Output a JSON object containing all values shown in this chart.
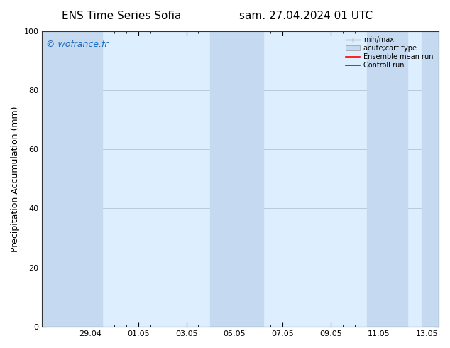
{
  "title_left": "ENS Time Series Sofia",
  "title_right": "sam. 27.04.2024 01 UTC",
  "ylabel": "Precipitation Accumulation (mm)",
  "watermark": "© wofrance.fr",
  "watermark_color": "#1a6abf",
  "ylim": [
    0,
    100
  ],
  "yticks": [
    0,
    20,
    40,
    60,
    80,
    100
  ],
  "xtick_labels": [
    "29.04",
    "01.05",
    "03.05",
    "05.05",
    "07.05",
    "09.05",
    "11.05",
    "13.05"
  ],
  "bg_color": "#ffffff",
  "plot_bg_color": "#ddeeff",
  "shaded_band_color": "#c5daf0",
  "legend_entries": [
    {
      "label": "min/max",
      "color": "#aaaaaa",
      "type": "errorbar"
    },
    {
      "label": "acute;cart type",
      "color": "#c5daf0",
      "type": "fill"
    },
    {
      "label": "Ensemble mean run",
      "color": "#ff0000",
      "type": "line"
    },
    {
      "label": "Controll run",
      "color": "#008800",
      "type": "line"
    }
  ],
  "xmin": 0.0,
  "xmax": 16.5,
  "grid_color": "#aabbcc",
  "font_size_title": 11,
  "font_size_axis": 9,
  "font_size_tick": 8,
  "font_size_watermark": 9,
  "font_size_legend": 7
}
